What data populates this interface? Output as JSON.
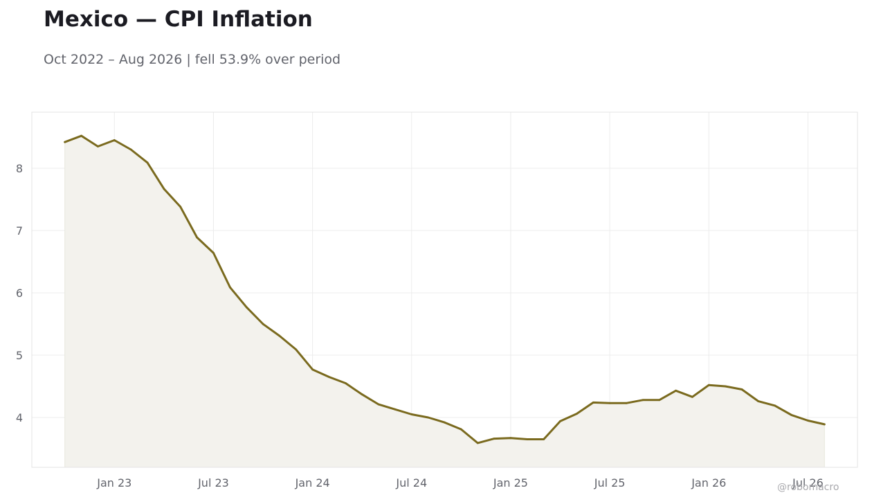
{
  "header": {
    "title": "Mexico — CPI Inflation",
    "subtitle": "Oct 2022 – Aug 2026 | fell 53.9% over period"
  },
  "watermark": "@robomacro",
  "colors": {
    "line": "#7a6a1e",
    "fill": "#f3f2ed",
    "grid": "#ececec",
    "frame": "#e3e3e3"
  },
  "chart_data": {
    "type": "area",
    "title": "Mexico — CPI Inflation",
    "subtitle": "Oct 2022 – Aug 2026 | fell 53.9% over period",
    "xlabel": "",
    "ylabel": "",
    "grid": true,
    "x_ticks": [
      "Jan 23",
      "Jul 23",
      "Jan 24",
      "Jul 24",
      "Jan 25",
      "Jul 25",
      "Jan 26",
      "Jul 26"
    ],
    "y_ticks": [
      4,
      5,
      6,
      7,
      8
    ],
    "ylim": [
      3.2,
      8.9
    ],
    "xlim": [
      "2022-08",
      "2026-10"
    ],
    "series": [
      {
        "x": [
          "2022-10",
          "2022-11",
          "2022-12",
          "2023-01",
          "2023-02",
          "2023-03",
          "2023-04",
          "2023-05",
          "2023-06",
          "2023-07",
          "2023-08",
          "2023-09",
          "2023-10",
          "2023-11",
          "2023-12",
          "2024-01",
          "2024-02",
          "2024-03",
          "2024-04",
          "2024-05",
          "2024-06",
          "2024-07",
          "2024-08",
          "2024-09",
          "2024-10",
          "2024-11",
          "2024-12",
          "2025-01",
          "2025-02",
          "2025-03",
          "2025-04",
          "2025-05",
          "2025-06",
          "2025-07",
          "2025-08",
          "2025-09",
          "2025-10",
          "2025-11",
          "2025-12",
          "2026-01",
          "2026-02",
          "2026-03",
          "2026-04",
          "2026-05",
          "2026-06",
          "2026-07",
          "2026-08"
        ],
        "values": [
          8.42,
          8.52,
          8.35,
          8.45,
          8.3,
          8.09,
          7.67,
          7.38,
          6.89,
          6.64,
          6.09,
          5.77,
          5.5,
          5.31,
          5.09,
          4.77,
          4.65,
          4.55,
          4.37,
          4.21,
          4.13,
          4.05,
          4.0,
          3.92,
          3.81,
          3.59,
          3.66,
          3.67,
          3.65,
          3.65,
          3.94,
          4.06,
          4.24,
          4.23,
          4.23,
          4.28,
          4.28,
          4.43,
          4.33,
          4.52,
          4.5,
          4.45,
          4.26,
          4.19,
          4.04,
          3.95,
          3.89
        ]
      }
    ]
  }
}
